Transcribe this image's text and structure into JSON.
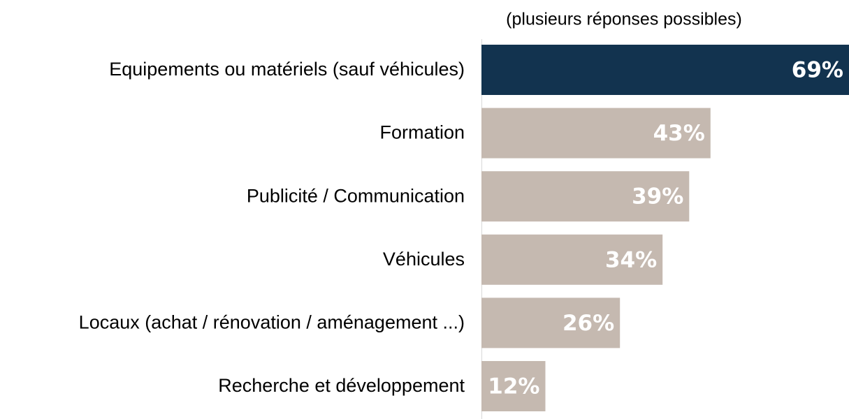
{
  "chart_data": {
    "type": "bar",
    "orientation": "horizontal",
    "subtitle": "(plusieurs réponses possibles)",
    "categories": [
      "Equipements ou matériels (sauf véhicules)",
      "Formation",
      "Publicité / Communication",
      "Véhicules",
      "Locaux (achat / rénovation / aménagement ...)",
      "Recherche et développement"
    ],
    "values": [
      69,
      43,
      39,
      34,
      26,
      12
    ],
    "value_labels": [
      "69%",
      "43%",
      "39%",
      "34%",
      "26%",
      "12%"
    ],
    "colors": [
      "#12334f",
      "#c5b9b0",
      "#c5b9b0",
      "#c5b9b0",
      "#c5b9b0",
      "#c5b9b0"
    ]
  }
}
